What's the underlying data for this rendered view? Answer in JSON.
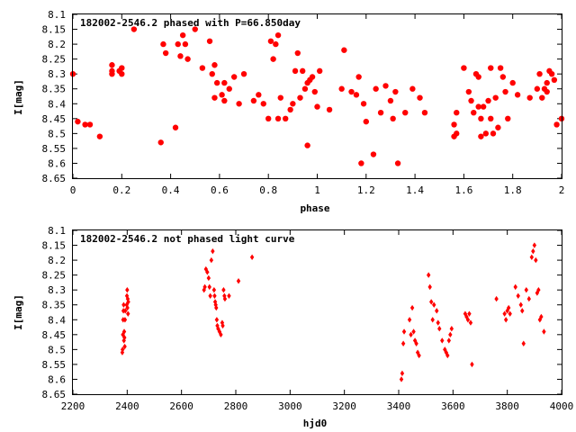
{
  "colors": {
    "points": "#ff0000",
    "axes": "#000000",
    "background": "#ffffff"
  },
  "chart_data": [
    {
      "type": "scatter",
      "title": "182002-2546.2 phased with P=66.850day",
      "xlabel": "phase",
      "ylabel": "I[mag]",
      "xlim": [
        0,
        2
      ],
      "ylim": [
        8.65,
        8.1
      ],
      "y_inverted": true,
      "xticks": [
        "0",
        "0.2",
        "0.4",
        "0.6",
        "0.8",
        "1",
        "1.2",
        "1.4",
        "1.6",
        "1.8",
        "2"
      ],
      "yticks": [
        "8.1",
        "8.15",
        "8.2",
        "8.25",
        "8.3",
        "8.35",
        "8.4",
        "8.45",
        "8.5",
        "8.55",
        "8.6",
        "8.65"
      ],
      "grid": false,
      "marker": "filled-circle",
      "x": [
        0.0,
        0.02,
        0.05,
        0.07,
        0.11,
        0.16,
        0.16,
        0.16,
        0.19,
        0.2,
        0.2,
        0.25,
        0.36,
        0.37,
        0.38,
        0.42,
        0.43,
        0.44,
        0.45,
        0.46,
        0.47,
        0.5,
        0.53,
        0.56,
        0.57,
        0.58,
        0.58,
        0.59,
        0.61,
        0.62,
        0.62,
        0.64,
        0.66,
        0.68,
        0.7,
        0.74,
        0.76,
        0.78,
        0.8,
        0.81,
        0.82,
        0.83,
        0.84,
        0.84,
        0.85,
        0.87,
        0.89,
        0.9,
        0.91,
        0.92,
        0.93,
        0.94,
        0.95,
        0.96,
        0.96,
        0.97,
        0.98,
        0.99,
        1.0,
        1.01,
        1.05,
        1.1,
        1.11,
        1.14,
        1.16,
        1.17,
        1.18,
        1.19,
        1.2,
        1.23,
        1.24,
        1.26,
        1.28,
        1.3,
        1.31,
        1.32,
        1.33,
        1.36,
        1.39,
        1.42,
        1.44,
        1.56,
        1.56,
        1.57,
        1.57,
        1.6,
        1.62,
        1.63,
        1.64,
        1.65,
        1.66,
        1.66,
        1.67,
        1.67,
        1.68,
        1.69,
        1.7,
        1.71,
        1.71,
        1.72,
        1.73,
        1.74,
        1.75,
        1.76,
        1.77,
        1.78,
        1.8,
        1.82,
        1.87,
        1.9,
        1.91,
        1.92,
        1.93,
        1.94,
        1.94,
        1.95,
        1.96,
        1.97,
        1.98,
        2.0
      ],
      "y": [
        8.3,
        8.46,
        8.47,
        8.47,
        8.51,
        8.3,
        8.29,
        8.27,
        8.29,
        8.28,
        8.3,
        8.15,
        8.53,
        8.2,
        8.23,
        8.48,
        8.2,
        8.24,
        8.17,
        8.2,
        8.25,
        8.15,
        8.28,
        8.19,
        8.3,
        8.27,
        8.38,
        8.33,
        8.37,
        8.39,
        8.33,
        8.35,
        8.31,
        8.4,
        8.3,
        8.39,
        8.37,
        8.4,
        8.45,
        8.19,
        8.25,
        8.2,
        8.17,
        8.45,
        8.38,
        8.45,
        8.42,
        8.4,
        8.29,
        8.23,
        8.38,
        8.29,
        8.35,
        8.33,
        8.54,
        8.32,
        8.31,
        8.36,
        8.41,
        8.29,
        8.42,
        8.35,
        8.22,
        8.36,
        8.37,
        8.31,
        8.6,
        8.4,
        8.46,
        8.57,
        8.35,
        8.43,
        8.34,
        8.39,
        8.45,
        8.36,
        8.6,
        8.43,
        8.35,
        8.38,
        8.43,
        8.47,
        8.51,
        8.5,
        8.43,
        8.28,
        8.36,
        8.39,
        8.43,
        8.3,
        8.31,
        8.41,
        8.51,
        8.45,
        8.41,
        8.5,
        8.39,
        8.45,
        8.28,
        8.5,
        8.38,
        8.48,
        8.28,
        8.31,
        8.36,
        8.45,
        8.33,
        8.37,
        8.38,
        8.35,
        8.3,
        8.38,
        8.35,
        8.36,
        8.33,
        8.29,
        8.3,
        8.32,
        8.47,
        8.45
      ]
    },
    {
      "type": "scatter",
      "title": "182002-2546.2 not phased light curve",
      "xlabel": "hjd0",
      "ylabel": "I[mag]",
      "xlim": [
        2200,
        4000
      ],
      "ylim": [
        8.65,
        8.1
      ],
      "y_inverted": true,
      "xticks": [
        "2200",
        "2400",
        "2600",
        "2800",
        "3000",
        "3200",
        "3400",
        "3600",
        "3800",
        "4000"
      ],
      "yticks": [
        "8.1",
        "8.15",
        "8.2",
        "8.25",
        "8.3",
        "8.35",
        "8.4",
        "8.45",
        "8.5",
        "8.55",
        "8.6",
        "8.65"
      ],
      "grid": false,
      "marker": "small-diamond",
      "x": [
        2382,
        2383,
        2384,
        2385,
        2386,
        2387,
        2388,
        2389,
        2390,
        2391,
        2392,
        2393,
        2398,
        2399,
        2400,
        2401,
        2402,
        2403,
        2404,
        2683,
        2686,
        2690,
        2695,
        2700,
        2703,
        2706,
        2710,
        2715,
        2720,
        2722,
        2724,
        2726,
        2728,
        2730,
        2732,
        2735,
        2740,
        2745,
        2750,
        2752,
        2755,
        2758,
        2760,
        2775,
        2810,
        2860,
        3410,
        3413,
        3417,
        3420,
        3440,
        3445,
        3450,
        3455,
        3460,
        3465,
        3470,
        3475,
        3510,
        3515,
        3520,
        3525,
        3530,
        3540,
        3545,
        3550,
        3560,
        3570,
        3575,
        3580,
        3585,
        3590,
        3595,
        3645,
        3650,
        3655,
        3660,
        3665,
        3670,
        3760,
        3790,
        3795,
        3800,
        3805,
        3810,
        3830,
        3840,
        3850,
        3855,
        3860,
        3870,
        3880,
        3890,
        3895,
        3900,
        3905,
        3910,
        3915,
        3920,
        3925,
        3935
      ],
      "y": [
        8.51,
        8.5,
        8.45,
        8.4,
        8.37,
        8.35,
        8.47,
        8.44,
        8.46,
        8.49,
        8.4,
        8.37,
        8.35,
        8.32,
        8.3,
        8.36,
        8.33,
        8.38,
        8.34,
        8.3,
        8.29,
        8.23,
        8.24,
        8.26,
        8.29,
        8.32,
        8.2,
        8.17,
        8.3,
        8.32,
        8.34,
        8.35,
        8.36,
        8.4,
        8.42,
        8.43,
        8.44,
        8.45,
        8.41,
        8.42,
        8.3,
        8.32,
        8.33,
        8.32,
        8.27,
        8.19,
        8.6,
        8.58,
        8.48,
        8.44,
        8.4,
        8.45,
        8.36,
        8.44,
        8.47,
        8.48,
        8.51,
        8.52,
        8.25,
        8.29,
        8.34,
        8.4,
        8.35,
        8.37,
        8.41,
        8.43,
        8.47,
        8.5,
        8.51,
        8.52,
        8.47,
        8.45,
        8.43,
        8.38,
        8.39,
        8.4,
        8.38,
        8.41,
        8.55,
        8.33,
        8.38,
        8.4,
        8.37,
        8.36,
        8.38,
        8.29,
        8.32,
        8.35,
        8.37,
        8.48,
        8.3,
        8.33,
        8.19,
        8.17,
        8.15,
        8.2,
        8.31,
        8.3,
        8.4,
        8.39,
        8.44
      ]
    }
  ]
}
